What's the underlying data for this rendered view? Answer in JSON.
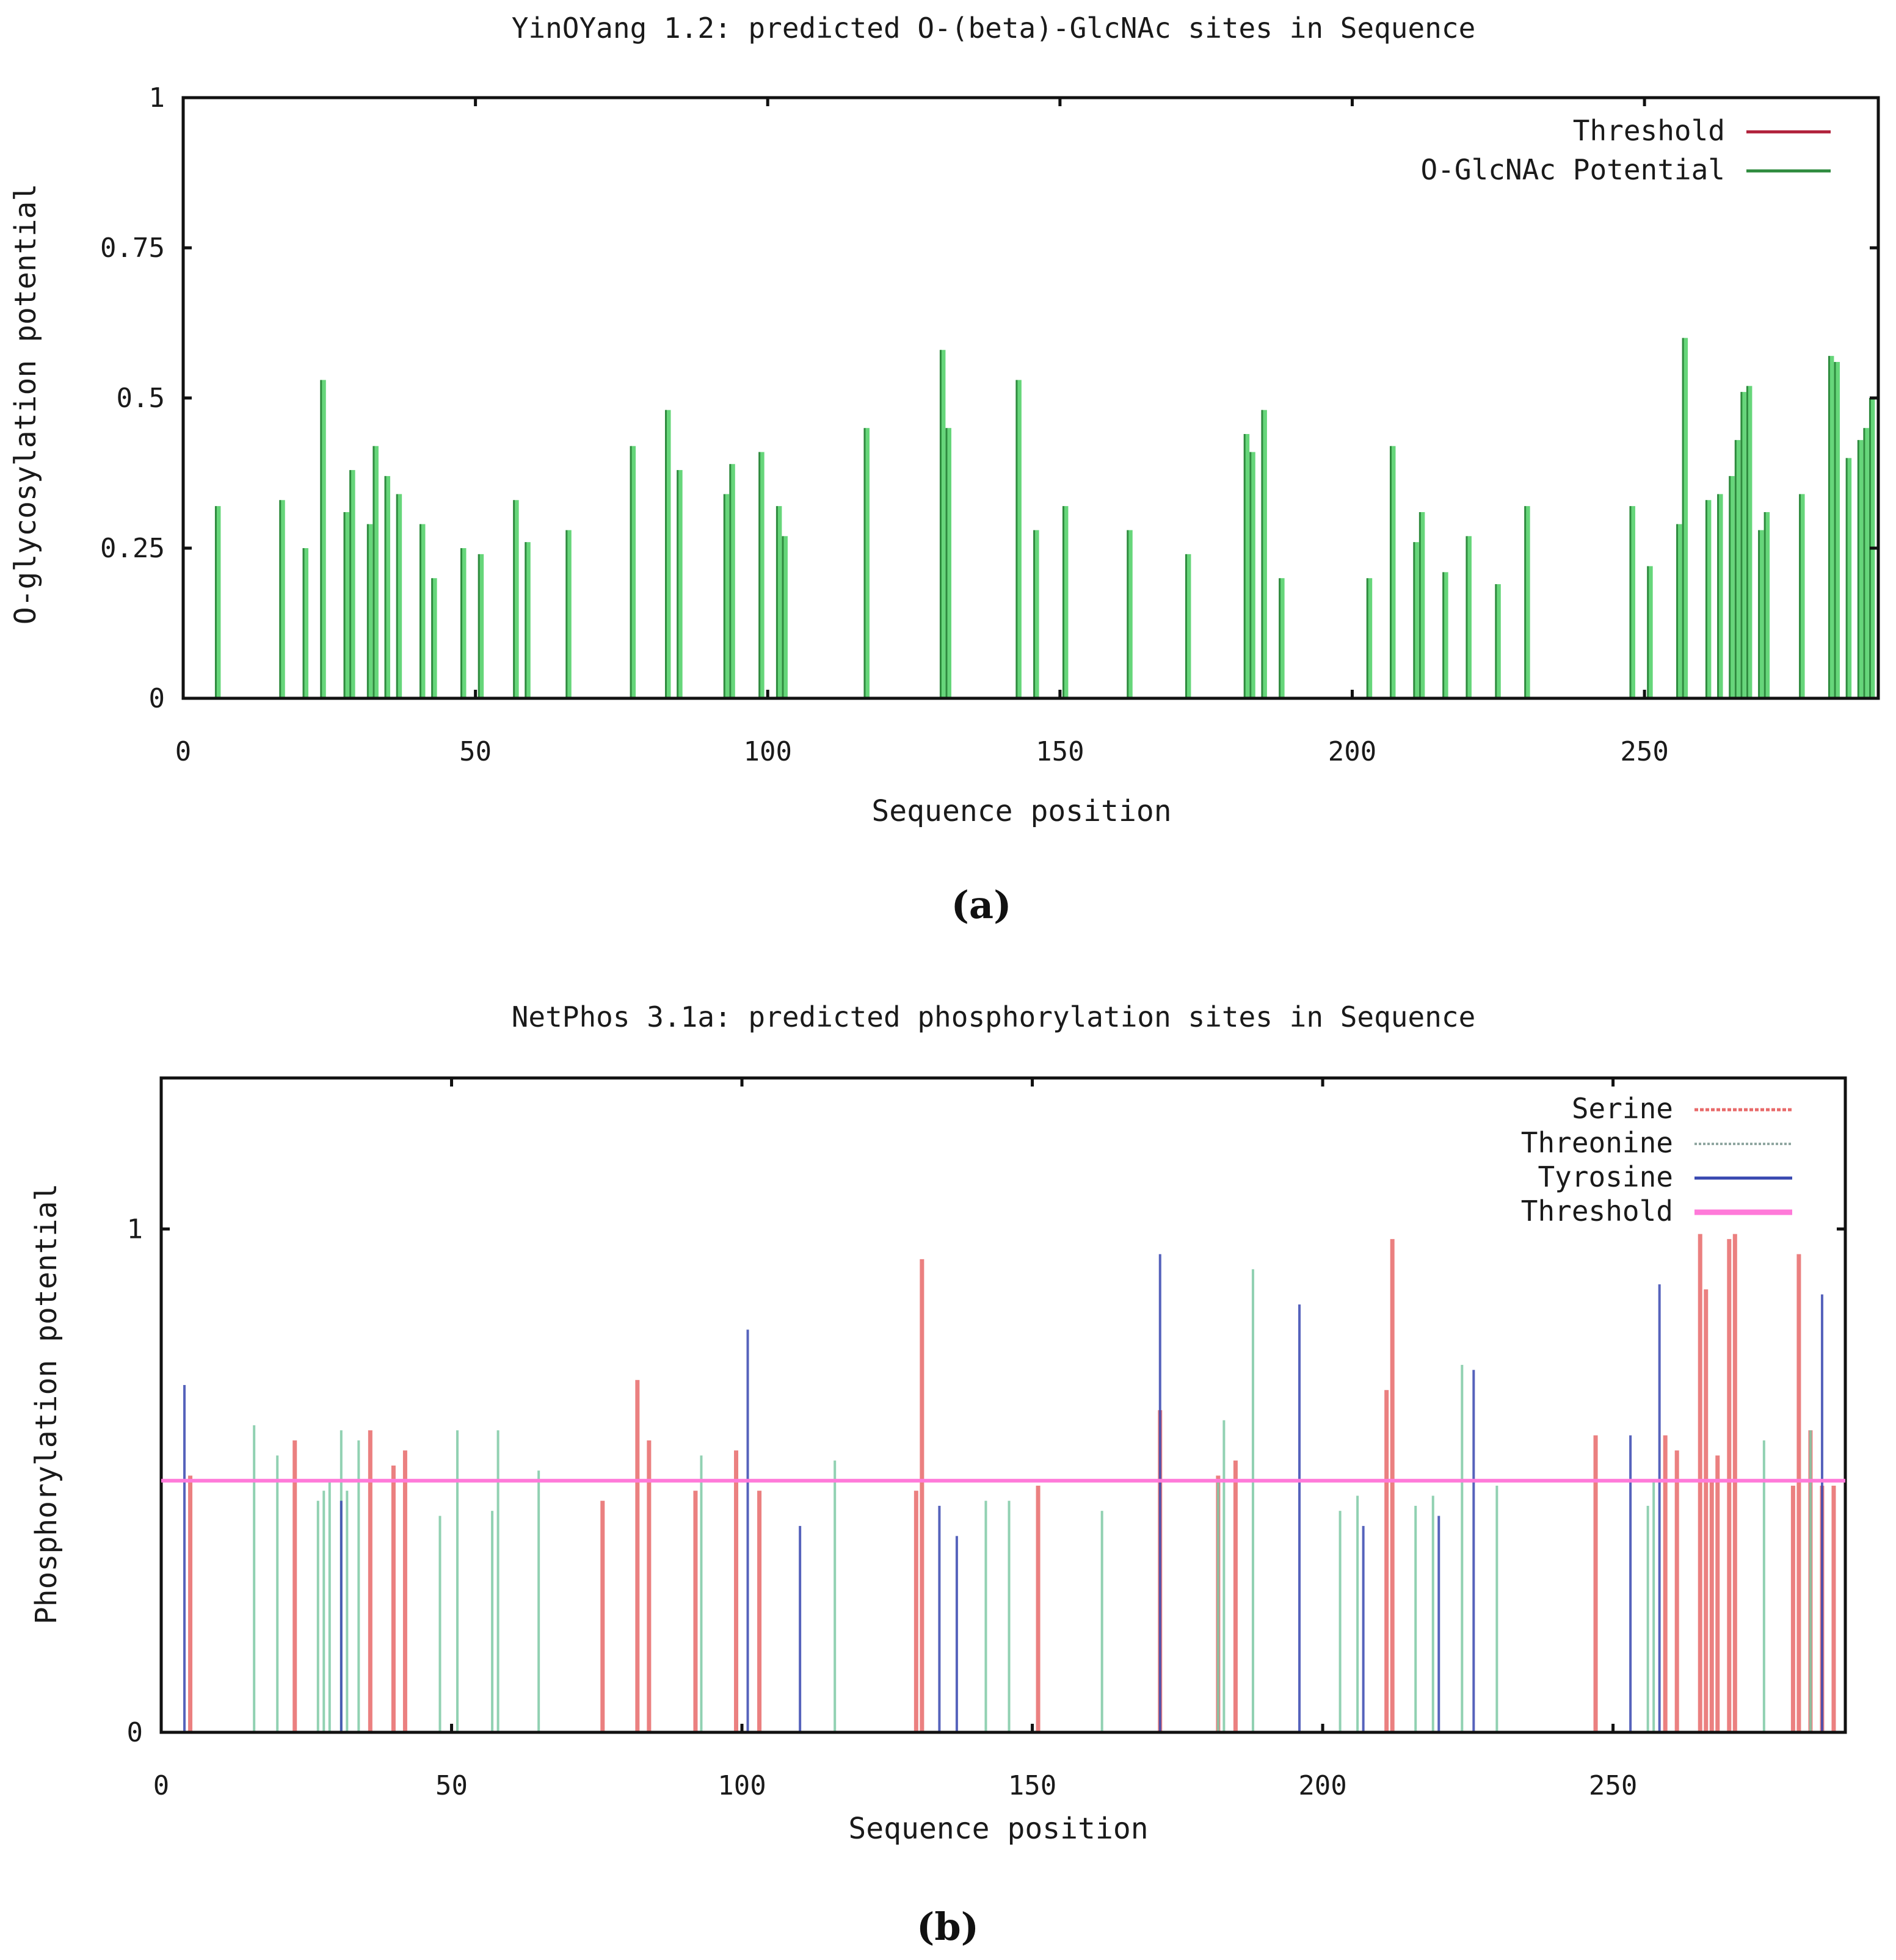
{
  "figure": {
    "caption_a": "(a)",
    "caption_b": "(b)"
  },
  "chart_data": [
    {
      "type": "bar",
      "title": "YinOYang 1.2: predicted O-(beta)-GlcNAc sites in Sequence",
      "xlabel": "Sequence position",
      "ylabel": "O-glycosylation potential",
      "xlim": [
        0,
        290
      ],
      "ylim": [
        0,
        1
      ],
      "xticks": [
        0,
        50,
        100,
        150,
        200,
        250
      ],
      "xtick_labels": [
        "0",
        "50",
        "100",
        "150",
        "200",
        "250"
      ],
      "yticks": [
        0,
        0.25,
        0.5,
        0.75,
        1
      ],
      "ytick_labels": [
        "0",
        "0.25",
        "0.5",
        "0.75",
        "1"
      ],
      "legend": {
        "position": "top-right",
        "entries": [
          {
            "name": "Threshold",
            "color": "#b0203a"
          },
          {
            "name": "O-GlcNAc Potential",
            "color": "#2e8b3e"
          }
        ]
      },
      "series": [
        {
          "name": "O-GlcNAc Potential",
          "color": "#2e8b3e",
          "fill": "#66d67a",
          "x": [
            6,
            17,
            21,
            24,
            28,
            29,
            32,
            33,
            35,
            37,
            41,
            43,
            48,
            51,
            57,
            59,
            66,
            77,
            83,
            85,
            93,
            94,
            99,
            102,
            103,
            117,
            130,
            131,
            143,
            146,
            151,
            162,
            172,
            182,
            183,
            185,
            188,
            203,
            207,
            211,
            212,
            216,
            220,
            225,
            230,
            248,
            251,
            256,
            257,
            261,
            263,
            265,
            266,
            267,
            268,
            270,
            271,
            277,
            282,
            283,
            285,
            287,
            288,
            289
          ],
          "values": [
            0.32,
            0.33,
            0.25,
            0.53,
            0.31,
            0.38,
            0.29,
            0.42,
            0.37,
            0.34,
            0.29,
            0.2,
            0.25,
            0.24,
            0.33,
            0.26,
            0.28,
            0.42,
            0.48,
            0.38,
            0.34,
            0.39,
            0.41,
            0.32,
            0.27,
            0.45,
            0.58,
            0.45,
            0.53,
            0.28,
            0.32,
            0.28,
            0.24,
            0.44,
            0.41,
            0.48,
            0.2,
            0.2,
            0.42,
            0.26,
            0.31,
            0.21,
            0.27,
            0.19,
            0.32,
            0.32,
            0.22,
            0.29,
            0.6,
            0.33,
            0.34,
            0.37,
            0.43,
            0.51,
            0.52,
            0.28,
            0.31,
            0.34,
            0.57,
            0.56,
            0.4,
            0.43,
            0.45,
            0.5
          ]
        }
      ]
    },
    {
      "type": "bar",
      "title": "NetPhos 3.1a: predicted phosphorylation sites in Sequence",
      "xlabel": "Sequence position",
      "ylabel": "Phosphorylation potential",
      "xlim": [
        0,
        290
      ],
      "ylim": [
        0,
        1.3
      ],
      "xticks": [
        0,
        50,
        100,
        150,
        200,
        250
      ],
      "xtick_labels": [
        "0",
        "50",
        "100",
        "150",
        "200",
        "250"
      ],
      "yticks": [
        0,
        1
      ],
      "ytick_labels": [
        "0",
        "1"
      ],
      "threshold": 0.5,
      "legend": {
        "position": "top-right",
        "entries": [
          {
            "name": "Serine",
            "color": "#e86a6a"
          },
          {
            "name": "Threonine",
            "color": "#8fa6a0"
          },
          {
            "name": "Tyrosine",
            "color": "#3848b0"
          },
          {
            "name": "Threshold",
            "color": "#ff7ad9"
          }
        ]
      },
      "series": [
        {
          "name": "Serine",
          "color": "#e86a6a",
          "x": [
            5,
            23,
            36,
            40,
            42,
            76,
            82,
            84,
            92,
            99,
            103,
            130,
            131,
            151,
            172,
            182,
            185,
            211,
            212,
            247,
            259,
            261,
            265,
            266,
            267,
            268,
            270,
            271,
            281,
            282,
            284,
            286,
            288
          ],
          "values": [
            0.51,
            0.58,
            0.6,
            0.53,
            0.56,
            0.46,
            0.7,
            0.58,
            0.48,
            0.56,
            0.48,
            0.48,
            0.94,
            0.49,
            0.64,
            0.51,
            0.54,
            0.68,
            0.98,
            0.59,
            0.59,
            0.56,
            0.99,
            0.88,
            0.5,
            0.55,
            0.98,
            0.99,
            0.49,
            0.95,
            0.6,
            0.49,
            0.49
          ]
        },
        {
          "name": "Threonine",
          "color": "#7ec9a4",
          "x": [
            16,
            20,
            27,
            28,
            29,
            31,
            32,
            34,
            48,
            51,
            57,
            58,
            65,
            93,
            116,
            142,
            146,
            162,
            182,
            183,
            188,
            203,
            206,
            216,
            219,
            224,
            230,
            256,
            257,
            276,
            284
          ],
          "values": [
            0.61,
            0.55,
            0.46,
            0.48,
            0.5,
            0.6,
            0.48,
            0.58,
            0.43,
            0.6,
            0.44,
            0.6,
            0.52,
            0.55,
            0.54,
            0.46,
            0.46,
            0.44,
            0.5,
            0.62,
            0.92,
            0.44,
            0.47,
            0.45,
            0.47,
            0.73,
            0.49,
            0.45,
            0.5,
            0.58,
            0.6
          ]
        },
        {
          "name": "Tyrosine",
          "color": "#3848b0",
          "x": [
            4,
            31,
            101,
            110,
            134,
            137,
            172,
            196,
            207,
            220,
            226,
            253,
            258,
            286
          ],
          "values": [
            0.69,
            0.46,
            0.8,
            0.41,
            0.45,
            0.39,
            0.95,
            0.85,
            0.41,
            0.43,
            0.72,
            0.59,
            0.89,
            0.87
          ]
        }
      ]
    }
  ]
}
